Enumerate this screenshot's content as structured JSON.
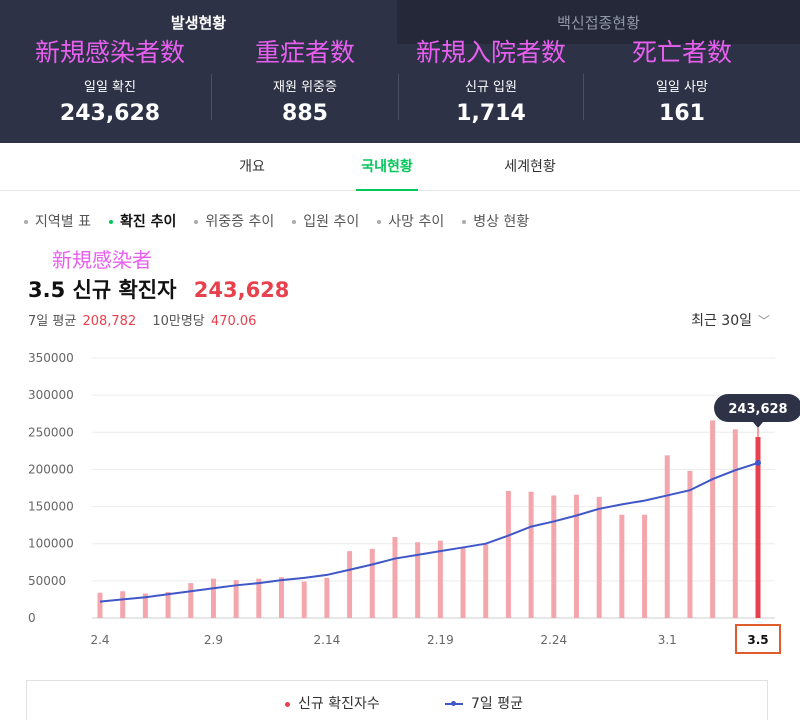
{
  "header": {
    "tabs": [
      {
        "label": "발생현황",
        "active": true
      },
      {
        "label": "백신접종현황",
        "active": false
      }
    ],
    "stats": [
      {
        "annotation": "新規感染者数",
        "label": "일일 확진",
        "value": "243,628"
      },
      {
        "annotation": "重症者数",
        "label": "재원 위중증",
        "value": "885"
      },
      {
        "annotation": "新規入院者数",
        "label": "신규 입원",
        "value": "1,714"
      },
      {
        "annotation": "死亡者数",
        "label": "일일 사망",
        "value": "161"
      }
    ]
  },
  "subnav": {
    "items": [
      {
        "label": "개요",
        "active": false
      },
      {
        "label": "국내현황",
        "active": true
      },
      {
        "label": "세계현황",
        "active": false
      }
    ]
  },
  "chips": [
    {
      "label": "지역별 표",
      "active": false
    },
    {
      "label": "확진 추이",
      "active": true
    },
    {
      "label": "위중증 추이",
      "active": false
    },
    {
      "label": "입원 추이",
      "active": false
    },
    {
      "label": "사망 추이",
      "active": false
    },
    {
      "label": "병상 현황",
      "active": false
    }
  ],
  "summary": {
    "annotation": "新規感染者",
    "date": "3.5",
    "title": "신규 확진자",
    "value": "243,628",
    "avg_label": "7일 평균",
    "avg_value": "208,782",
    "per100k_label": "10만명당",
    "per100k_value": "470.06",
    "range_label": "최근 30일"
  },
  "colors": {
    "header_bg": "#2d3246",
    "accent_green": "#03c75a",
    "bar": "#f4a6ad",
    "bar_highlight": "#e8414d",
    "avg_line": "#3f57c9",
    "annotation": "#e85ff0"
  },
  "chart_data": {
    "type": "bar",
    "x": [
      "2.4",
      "2.5",
      "2.6",
      "2.7",
      "2.8",
      "2.9",
      "2.10",
      "2.11",
      "2.12",
      "2.13",
      "2.14",
      "2.15",
      "2.16",
      "2.17",
      "2.18",
      "2.19",
      "2.20",
      "2.21",
      "2.22",
      "2.23",
      "2.24",
      "2.25",
      "2.26",
      "2.27",
      "2.28",
      "3.1",
      "3.2",
      "3.3",
      "3.4",
      "3.5"
    ],
    "tick_labels": [
      "2.4",
      "2.9",
      "2.14",
      "2.19",
      "2.24",
      "3.1",
      "3.5"
    ],
    "series": [
      {
        "name": "신규 확진자수",
        "type": "bar",
        "values": [
          34000,
          36000,
          33000,
          35000,
          47000,
          53000,
          51000,
          53000,
          55000,
          49000,
          54000,
          90000,
          93000,
          109000,
          102000,
          104000,
          95000,
          99000,
          171000,
          170000,
          165000,
          166000,
          163000,
          139000,
          139000,
          219000,
          198000,
          266000,
          254000,
          243628
        ]
      },
      {
        "name": "7일 평균",
        "type": "line",
        "values": [
          22000,
          25000,
          28000,
          32000,
          36000,
          40000,
          44000,
          47000,
          51000,
          54000,
          58000,
          65000,
          72000,
          80000,
          85000,
          90000,
          95000,
          100000,
          111000,
          123000,
          130000,
          138000,
          147000,
          153000,
          158000,
          165000,
          172000,
          187000,
          199000,
          208782
        ]
      }
    ],
    "highlight": {
      "x": "3.5",
      "label": "243,628"
    },
    "ylim": [
      0,
      350000
    ],
    "yticks": [
      0,
      50000,
      100000,
      150000,
      200000,
      250000,
      300000,
      350000
    ],
    "grid": true,
    "legend_placement": "bottom"
  },
  "legend": [
    {
      "label": "신규 확진자수"
    },
    {
      "label": "7일 평균"
    }
  ]
}
